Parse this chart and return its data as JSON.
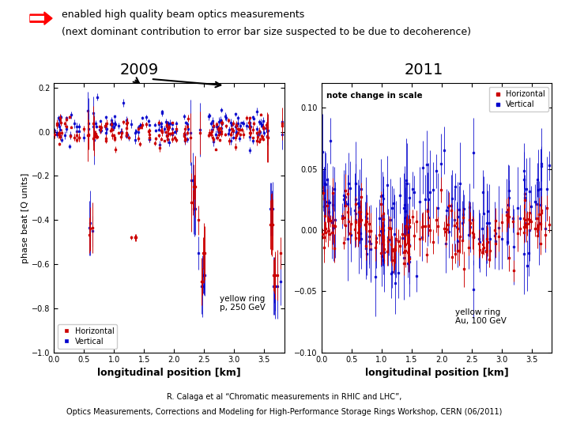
{
  "title_line1": "enabled high quality beam optics measurements",
  "title_line2": "(next dominant contribution to error bar size suspected to be due to decoherence)",
  "plot1_title": "2009",
  "plot2_title": "2011",
  "plot1_ylabel": "phase beat [Q units]",
  "plot1_xlabel": "longitudinal position [km]",
  "plot2_xlabel": "longitudinal position [km]",
  "plot1_ylim": [
    -1.0,
    0.22
  ],
  "plot2_ylim": [
    -0.1,
    0.12
  ],
  "plot1_xlim": [
    0,
    3.84
  ],
  "plot2_xlim": [
    0,
    3.84
  ],
  "plot1_annotation1": "yellow ring\np, 250 GeV",
  "plot2_annotation1": "yellow ring\nAu, 100 GeV",
  "plot2_note": "note change in scale",
  "legend_h": "Horizontal",
  "legend_v": "Vertical",
  "color_h": "#cc0000",
  "color_v": "#0000cc",
  "footer_line1": "R. Calaga et al “Chromatic measurements in RHIC and LHC”,",
  "footer_line2": "Optics Measurements, Corrections and Modeling for High-Performance Storage Rings Workshop, CERN (06/2011)",
  "bg_color": "#ffffff",
  "plot1_yticks": [
    -1.0,
    -0.8,
    -0.6,
    -0.4,
    -0.2,
    0.0,
    0.2
  ],
  "plot1_xticks": [
    0,
    0.5,
    1,
    1.5,
    2,
    2.5,
    3,
    3.5
  ],
  "plot2_yticks": [
    -0.1,
    -0.05,
    0.0,
    0.05,
    0.1
  ],
  "plot2_xticks": [
    0,
    0.5,
    1,
    1.5,
    2,
    2.5,
    3,
    3.5
  ]
}
